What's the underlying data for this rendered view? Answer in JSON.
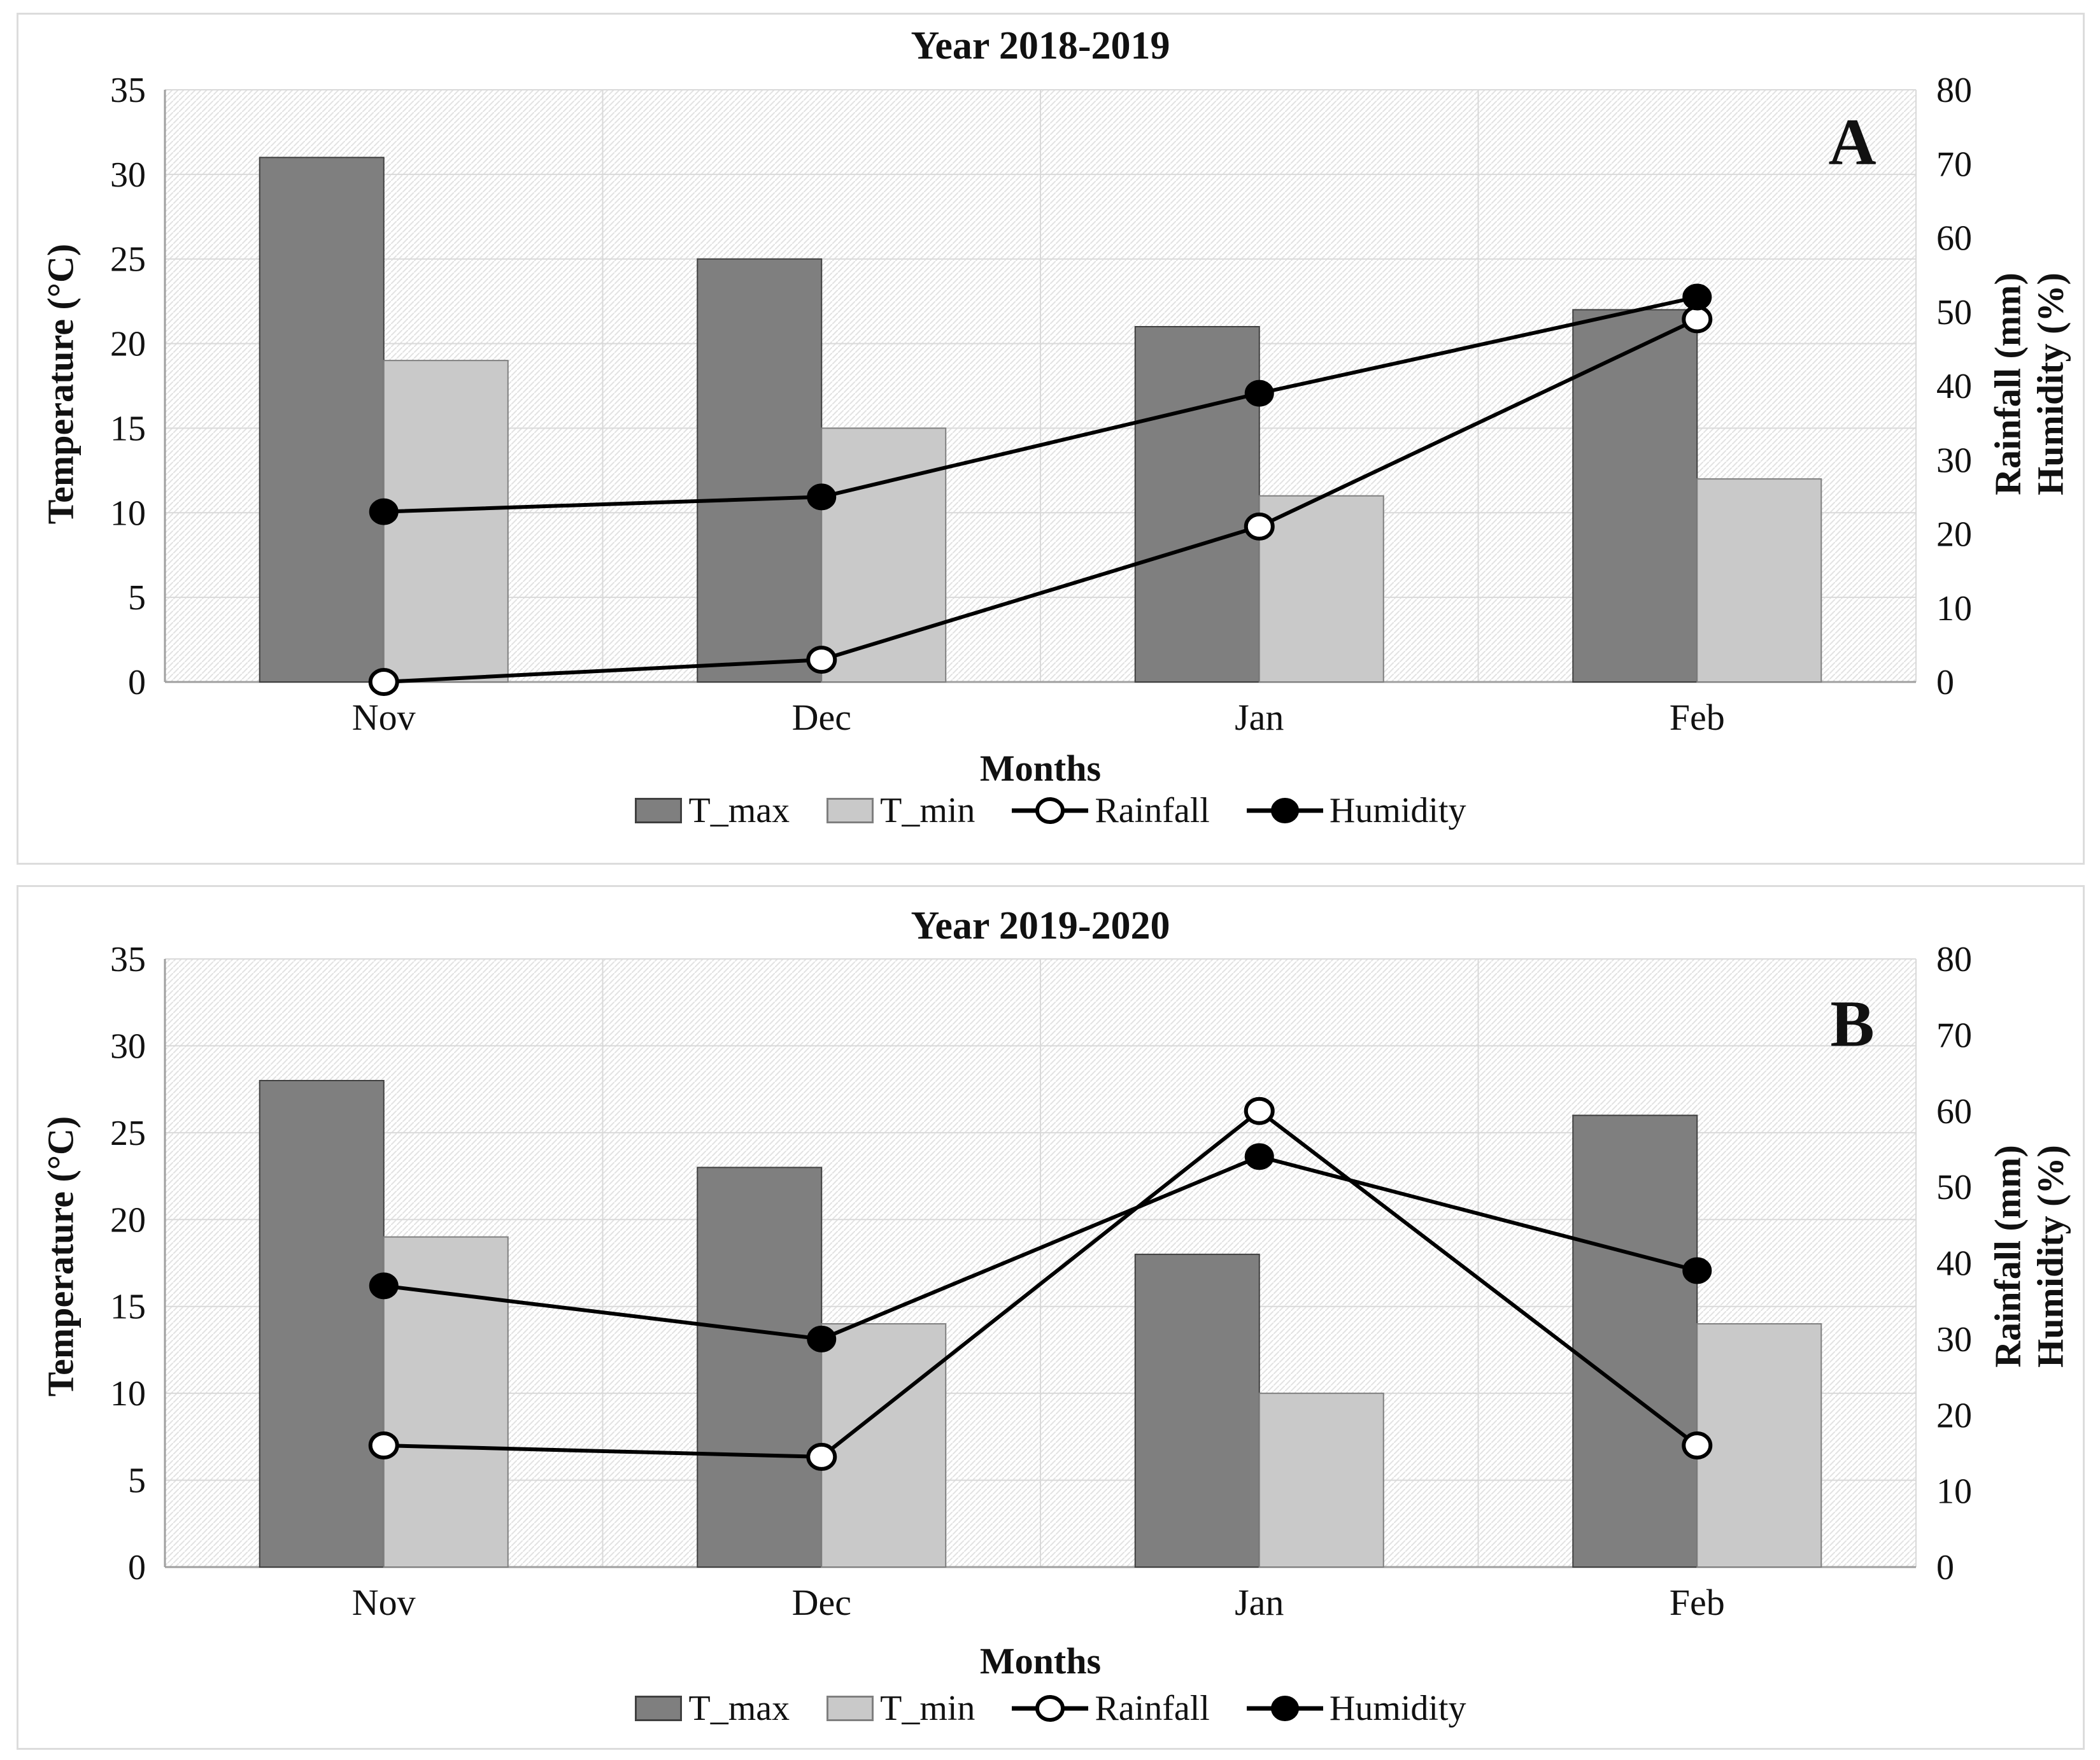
{
  "colors": {
    "t_max_fill": "#7f7f7f",
    "t_max_stroke": "#404040",
    "t_min_fill": "#c9c9c9",
    "t_min_stroke": "#7f7f7f",
    "line": "#000000",
    "marker_open_fill": "#ffffff",
    "marker_filled_fill": "#000000",
    "grid": "#d9d9d9",
    "axis": "#9f9f9f",
    "hatch_line": "#e2e2e2",
    "plot_bg": "#ffffff",
    "text": "#111111",
    "panel_border": "#dcdcdc"
  },
  "chart_data": [
    {
      "type": "bar+line",
      "panel_label": "A",
      "title": "Year 2018-2019",
      "xlabel": "Months",
      "categories": [
        "Nov",
        "Dec",
        "Jan",
        "Feb"
      ],
      "axis_left": {
        "label": "Temperature (°C)",
        "min": 0,
        "max": 35,
        "step": 5
      },
      "axis_right": {
        "label_line1": "Rainfall (mm)",
        "label_line2": "Humidity (%)",
        "min": 0,
        "max": 80,
        "step": 10
      },
      "grid": "on",
      "legend_position": "bottom",
      "series": [
        {
          "name": "T_max",
          "type": "bar",
          "axis": "left",
          "values": [
            31,
            25,
            21,
            22
          ]
        },
        {
          "name": "T_min",
          "type": "bar",
          "axis": "left",
          "values": [
            19,
            15,
            11,
            12
          ]
        },
        {
          "name": "Rainfall",
          "type": "line",
          "axis": "right",
          "marker": "open",
          "values": [
            0,
            3,
            21,
            49
          ]
        },
        {
          "name": "Humidity",
          "type": "line",
          "axis": "right",
          "marker": "filled",
          "values": [
            23,
            25,
            39,
            52
          ]
        }
      ]
    },
    {
      "type": "bar+line",
      "panel_label": "B",
      "title": "Year 2019-2020",
      "xlabel": "Months",
      "categories": [
        "Nov",
        "Dec",
        "Jan",
        "Feb"
      ],
      "axis_left": {
        "label": "Temperature (°C)",
        "min": 0,
        "max": 35,
        "step": 5
      },
      "axis_right": {
        "label_line1": "Rainfall (mm)",
        "label_line2": "Humidity (%)",
        "min": 0,
        "max": 80,
        "step": 10
      },
      "grid": "on",
      "legend_position": "bottom",
      "series": [
        {
          "name": "T_max",
          "type": "bar",
          "axis": "left",
          "values": [
            28,
            23,
            18,
            26
          ]
        },
        {
          "name": "T_min",
          "type": "bar",
          "axis": "left",
          "values": [
            19,
            14,
            10,
            14
          ]
        },
        {
          "name": "Rainfall",
          "type": "line",
          "axis": "right",
          "marker": "open",
          "values": [
            16,
            14.5,
            60,
            16
          ]
        },
        {
          "name": "Humidity",
          "type": "line",
          "axis": "right",
          "marker": "filled",
          "values": [
            37,
            30,
            54,
            39
          ]
        }
      ]
    }
  ]
}
